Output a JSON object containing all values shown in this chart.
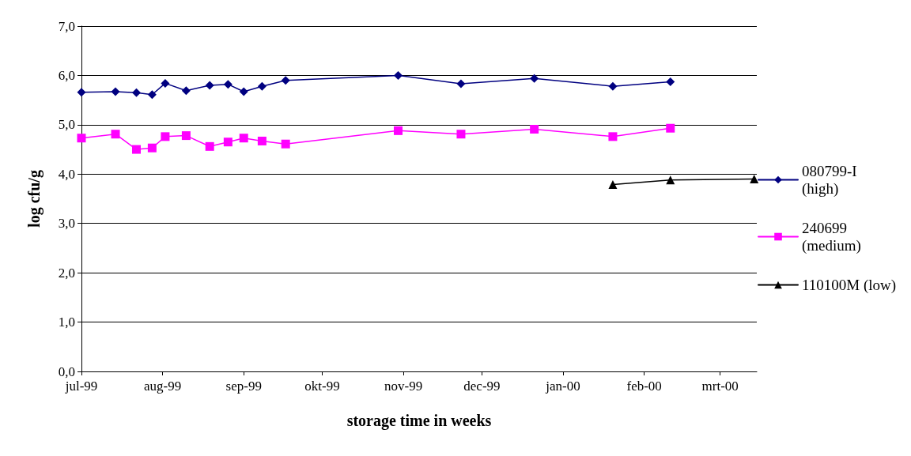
{
  "chart_data": {
    "type": "line",
    "xlabel": "storage time in weeks",
    "ylabel": "log cfu/g",
    "xlim": [
      "1999-07-01",
      "2000-03-15"
    ],
    "xticks": [
      {
        "value": "1999-07-01",
        "label": "jul-99"
      },
      {
        "value": "1999-08-01",
        "label": "aug-99"
      },
      {
        "value": "1999-09-01",
        "label": "sep-99"
      },
      {
        "value": "1999-10-01",
        "label": "okt-99"
      },
      {
        "value": "1999-11-01",
        "label": "nov-99"
      },
      {
        "value": "1999-12-01",
        "label": "dec-99"
      },
      {
        "value": "2000-01-01",
        "label": "jan-00"
      },
      {
        "value": "2000-02-01",
        "label": "feb-00"
      },
      {
        "value": "2000-03-01",
        "label": "mrt-00"
      }
    ],
    "ylim": [
      0,
      7
    ],
    "yticks": [
      {
        "value": 0,
        "label": "0,0"
      },
      {
        "value": 1,
        "label": "1,0"
      },
      {
        "value": 2,
        "label": "2,0"
      },
      {
        "value": 3,
        "label": "3,0"
      },
      {
        "value": 4,
        "label": "4,0"
      },
      {
        "value": 5,
        "label": "5,0"
      },
      {
        "value": 6,
        "label": "6,0"
      },
      {
        "value": 7,
        "label": "7,0"
      }
    ],
    "grid": "y",
    "legend": "right",
    "line_style": "solid",
    "series": [
      {
        "name": "080799-I (high)",
        "color": "#000080",
        "marker": "diamond",
        "x": [
          "1999-07-01",
          "1999-07-14",
          "1999-07-22",
          "1999-07-28",
          "1999-08-02",
          "1999-08-10",
          "1999-08-19",
          "1999-08-26",
          "1999-09-01",
          "1999-09-08",
          "1999-09-17",
          "1999-10-30",
          "1999-11-23",
          "1999-12-21",
          "2000-01-20",
          "2000-02-11"
        ],
        "values": [
          5.66,
          5.67,
          5.65,
          5.61,
          5.84,
          5.69,
          5.8,
          5.82,
          5.67,
          5.78,
          5.9,
          6.0,
          5.83,
          5.94,
          5.78,
          5.87
        ]
      },
      {
        "name": "240699 (medium)",
        "color": "#ff00ff",
        "marker": "square",
        "x": [
          "1999-07-01",
          "1999-07-14",
          "1999-07-22",
          "1999-07-28",
          "1999-08-02",
          "1999-08-10",
          "1999-08-19",
          "1999-08-26",
          "1999-09-01",
          "1999-09-08",
          "1999-09-17",
          "1999-10-30",
          "1999-11-23",
          "1999-12-21",
          "2000-01-20",
          "2000-02-11"
        ],
        "values": [
          4.73,
          4.81,
          4.5,
          4.53,
          4.76,
          4.78,
          4.56,
          4.65,
          4.73,
          4.67,
          4.61,
          4.88,
          4.81,
          4.91,
          4.76,
          4.93
        ]
      },
      {
        "name": "110100M (low)",
        "color": "#000000",
        "marker": "triangle",
        "x": [
          "2000-01-20",
          "2000-02-11",
          "2000-03-14"
        ],
        "values": [
          3.79,
          3.88,
          3.9
        ]
      }
    ]
  }
}
